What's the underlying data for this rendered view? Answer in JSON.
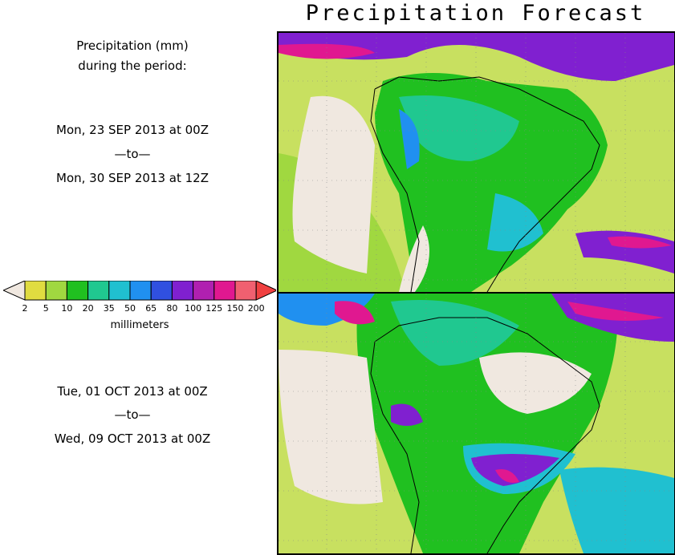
{
  "title": "Precipitation Forecast",
  "sidebar": {
    "heading_line1": "Precipitation (mm)",
    "heading_line2": "during the period:",
    "period1": {
      "start": "Mon, 23 SEP 2013 at 00Z",
      "sep": "—to—",
      "end": "Mon, 30 SEP 2013 at 12Z"
    },
    "period2": {
      "start": "Tue, 01 OCT 2013 at 00Z",
      "sep": "—to—",
      "end": "Wed, 09 OCT 2013 at 00Z"
    }
  },
  "colorbar": {
    "unit": "millimeters",
    "ticks": [
      "2",
      "5",
      "10",
      "20",
      "35",
      "50",
      "65",
      "80",
      "100",
      "125",
      "150",
      "200"
    ],
    "below_color": "#f0e8e0",
    "above_color": "#f04040",
    "colors": [
      "#e0dc40",
      "#a0d840",
      "#20c020",
      "#20c890",
      "#20c0d0",
      "#2090f0",
      "#3050e0",
      "#8020d0",
      "#b020b0",
      "#e01890",
      "#f06070"
    ]
  },
  "maps": {
    "ocean_color": "#c8e060",
    "dry_color": "#f0e8e0",
    "coast_color": "#000000"
  }
}
